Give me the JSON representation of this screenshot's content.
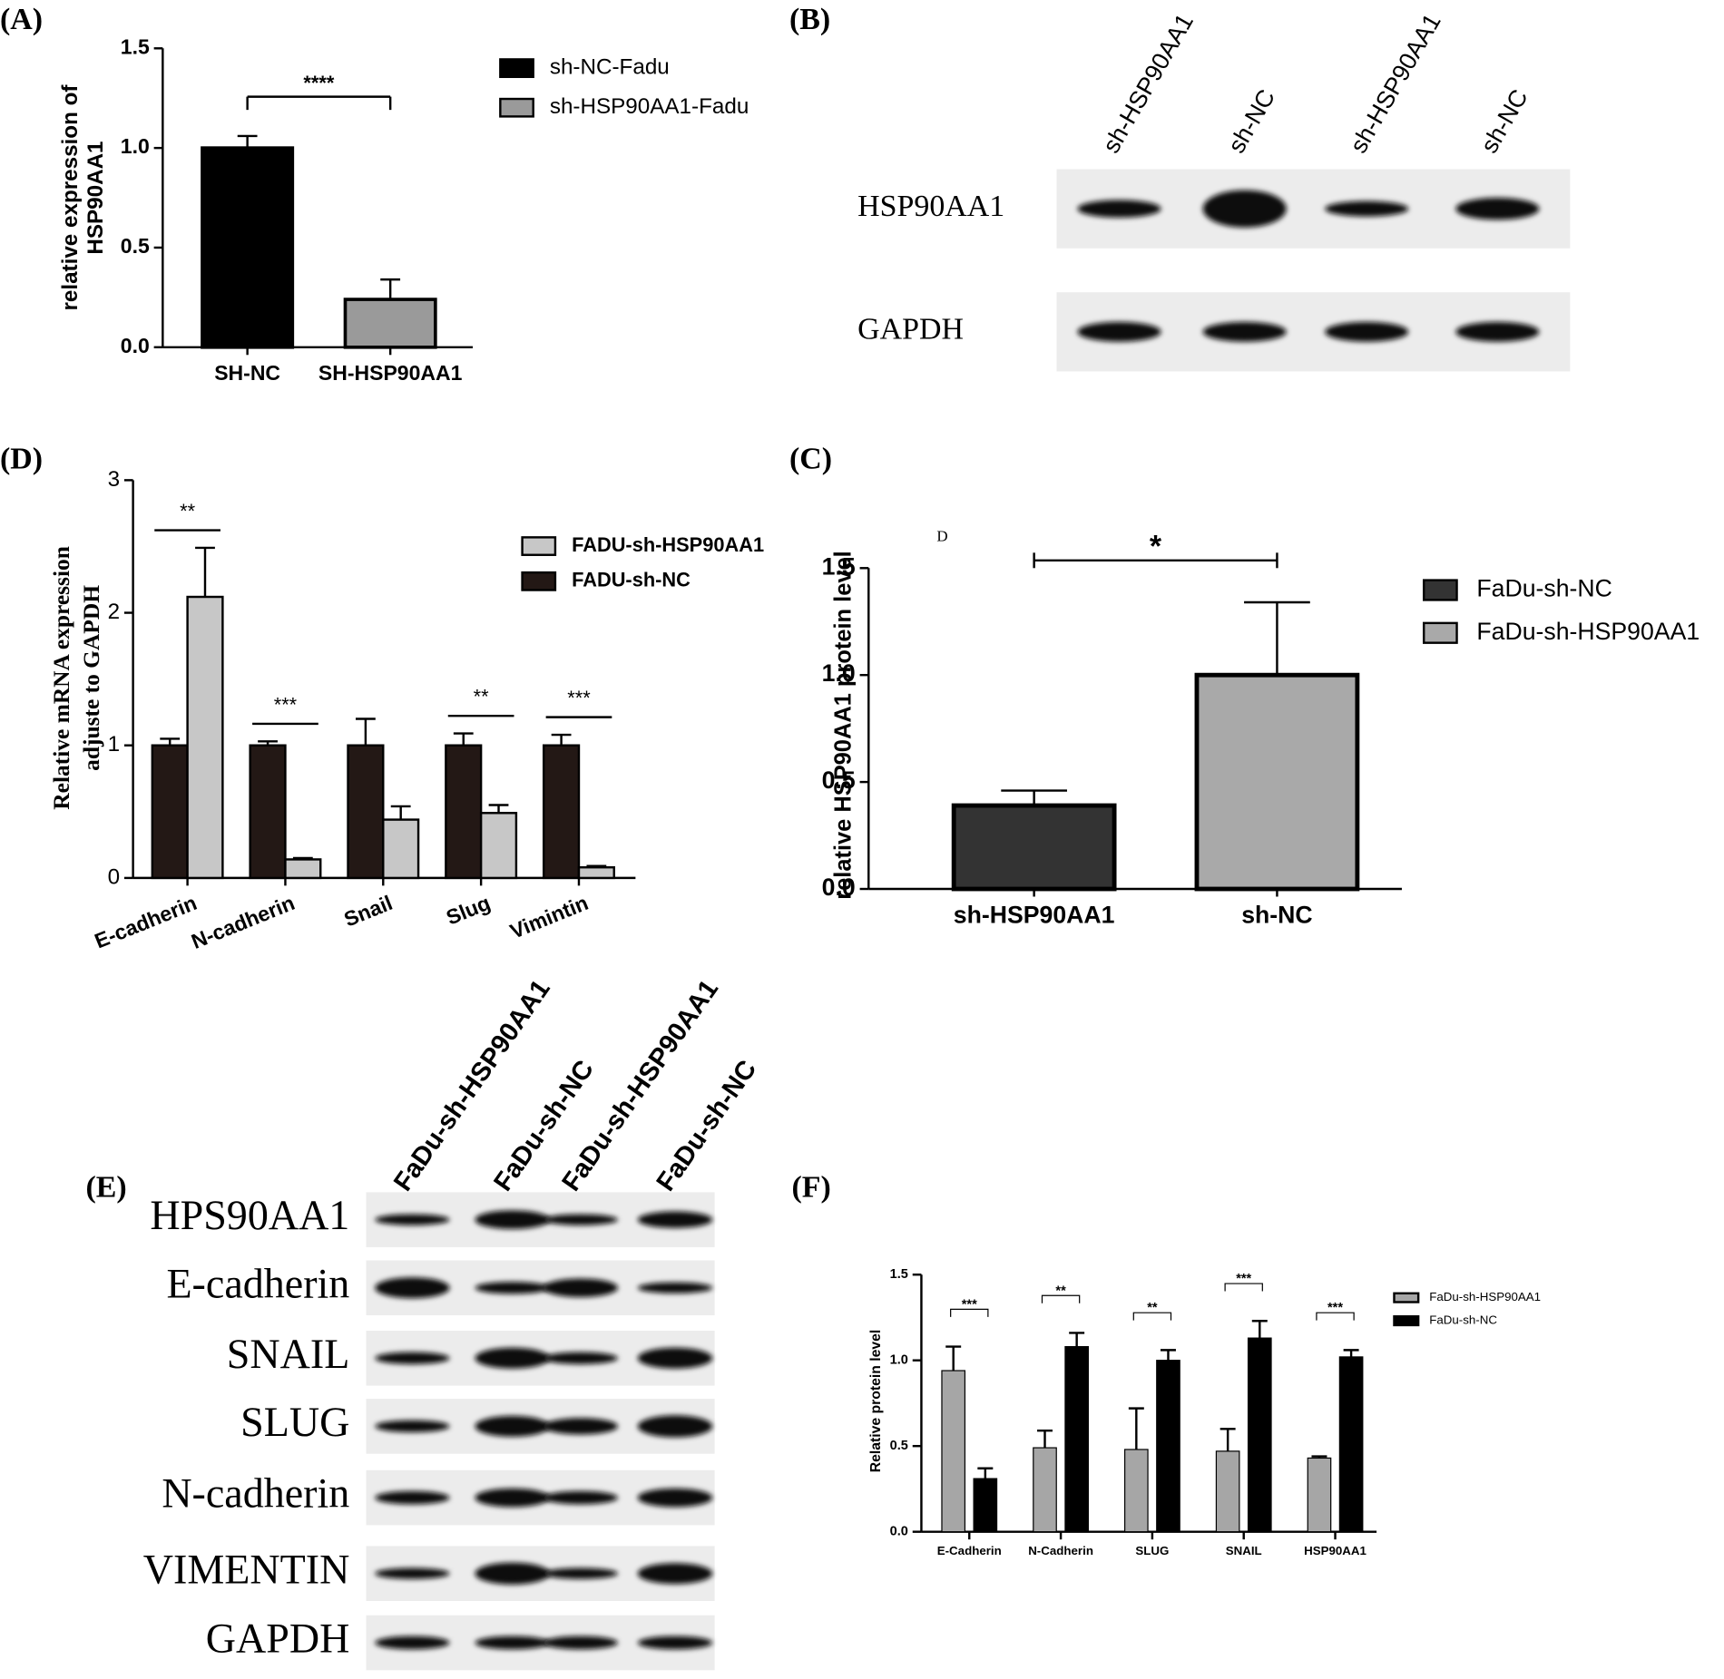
{
  "chart_data": [
    {
      "type": "bar",
      "panel_label": "(A)",
      "ylabel": [
        "relative expression of",
        "HSP90AA1"
      ],
      "categories": [
        "SH-NC",
        "SH-HSP90AA1"
      ],
      "series": [
        {
          "name": "sh-NC-Fadu",
          "color": "#000000",
          "values": [
            1.0,
            null
          ],
          "errors": [
            0.06,
            null
          ]
        },
        {
          "name": "sh-HSP90AA1-Fadu",
          "color": "#9a9a9a",
          "values": [
            null,
            0.24
          ],
          "errors": [
            null,
            0.1
          ]
        }
      ],
      "ylim": [
        0,
        1.5
      ],
      "yticks": [
        {
          "value": 0,
          "label": "0.0"
        },
        0.5,
        {
          "value": 1,
          "label": "1.0"
        },
        1.5
      ],
      "annotation": "****"
    },
    {
      "type": "bar",
      "panel_label": "(D)",
      "ylabel": [
        "Relative mRNA expression",
        "adjuste to GAPDH"
      ],
      "categories": [
        "E-cadherin",
        "N-cadherin",
        "Snail",
        "Slug",
        "Vimintin"
      ],
      "series": [
        {
          "name": "FADU-sh-HSP90AA1",
          "color": "#c7c7c7",
          "values": [
            2.12,
            0.14,
            0.44,
            0.49,
            0.08
          ],
          "errors": [
            0.37,
            0.01,
            0.1,
            0.06,
            0.01
          ]
        },
        {
          "name": "FADU-sh-NC",
          "color": "#231815",
          "values": [
            1,
            1,
            1,
            1,
            1
          ],
          "errors": [
            0.05,
            0.03,
            0.2,
            0.09,
            0.08
          ]
        }
      ],
      "ylim": [
        0,
        3
      ],
      "yticks": [
        0,
        1,
        2,
        3
      ],
      "annotations": [
        "**",
        "***",
        null,
        "**",
        "***"
      ]
    },
    {
      "type": "bar",
      "panel_label": "(C)",
      "note": "D",
      "ylabel": "relative HSP90AA1 protein level",
      "categories": [
        "sh-HSP90AA1",
        "sh-NC"
      ],
      "series": [
        {
          "name": "FaDu-sh-NC",
          "color": "#333333",
          "values": [
            0.39,
            null
          ],
          "errors": [
            0.07,
            null
          ]
        },
        {
          "name": "FaDu-sh-HSP90AA1",
          "color": "#a9a9a9",
          "values": [
            null,
            1.0
          ],
          "errors": [
            null,
            0.34
          ]
        }
      ],
      "ylim": [
        0,
        1.5
      ],
      "yticks": [
        {
          "value": 0,
          "label": "0.0"
        },
        0.5,
        {
          "value": 1,
          "label": "1.0"
        },
        1.5
      ],
      "annotation": "*"
    },
    {
      "type": "bar",
      "panel_label": "(F)",
      "ylabel": "Relative protein level",
      "categories": [
        "E-Cadherin",
        "N-Cadherin",
        "SLUG",
        "SNAIL",
        "HSP90AA1"
      ],
      "series": [
        {
          "name": "FaDu-sh-HSP90AA1",
          "color": "#a6a6a6",
          "values": [
            0.94,
            0.49,
            0.48,
            0.47,
            0.43
          ],
          "errors": [
            0.14,
            0.1,
            0.24,
            0.13,
            0.01
          ]
        },
        {
          "name": "FaDu-sh-NC",
          "color": "#000000",
          "values": [
            0.31,
            1.08,
            1.0,
            1.13,
            1.02
          ],
          "errors": [
            0.06,
            0.08,
            0.06,
            0.1,
            0.04
          ]
        }
      ],
      "ylim": [
        0,
        1.5
      ],
      "yticks": [
        {
          "value": 0,
          "label": "0.0"
        },
        0.5,
        {
          "value": 1,
          "label": "1.0"
        },
        1.5
      ],
      "annotations": [
        "***",
        "**",
        "**",
        "***",
        "***"
      ]
    }
  ],
  "blots": [
    {
      "panel_label": "(B)",
      "lanes": [
        "sh-HSP90AA1",
        "sh-NC",
        "sh-HSP90AA1",
        "sh-NC"
      ],
      "rows": [
        "HSP90AA1",
        "GAPDH"
      ]
    },
    {
      "panel_label": "(E)",
      "lanes": [
        "FaDu-sh-HSP90AA1",
        "FaDu-sh-NC",
        "FaDu-sh-HSP90AA1",
        "FaDu-sh-NC"
      ],
      "rows": [
        "HPS90AA1",
        "E-cadherin",
        "SNAIL",
        "SLUG",
        "N-cadherin",
        "VIMENTIN",
        "GAPDH"
      ]
    }
  ]
}
